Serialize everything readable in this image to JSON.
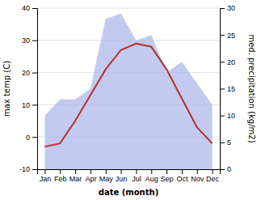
{
  "chart_data": {
    "type": "line",
    "xlabel": "date (month)",
    "ylabel": "max temp (C)",
    "y2label": "med. precipitation (kg/m2)",
    "categories": [
      "Jan",
      "Feb",
      "Mar",
      "Apr",
      "May",
      "Jun",
      "Jul",
      "Aug",
      "Sep",
      "Oct",
      "Nov",
      "Dec"
    ],
    "series": [
      {
        "type": "area",
        "axis": "y2",
        "color": "#aab4e8",
        "values": [
          10,
          13,
          13,
          15,
          28,
          29,
          24,
          25,
          18,
          20,
          16,
          12
        ]
      },
      {
        "type": "line",
        "color": "#b03030",
        "values": [
          -3,
          -2,
          5,
          13,
          21,
          27,
          29,
          28,
          21,
          12,
          3,
          -2
        ]
      }
    ],
    "ylim": [
      -10,
      40
    ],
    "yticks": [
      -10,
      0,
      10,
      20,
      30,
      40
    ],
    "y2lim": [
      0,
      30
    ],
    "y2ticks": [
      0,
      5,
      10,
      15,
      20,
      25,
      30
    ],
    "grid": true
  }
}
